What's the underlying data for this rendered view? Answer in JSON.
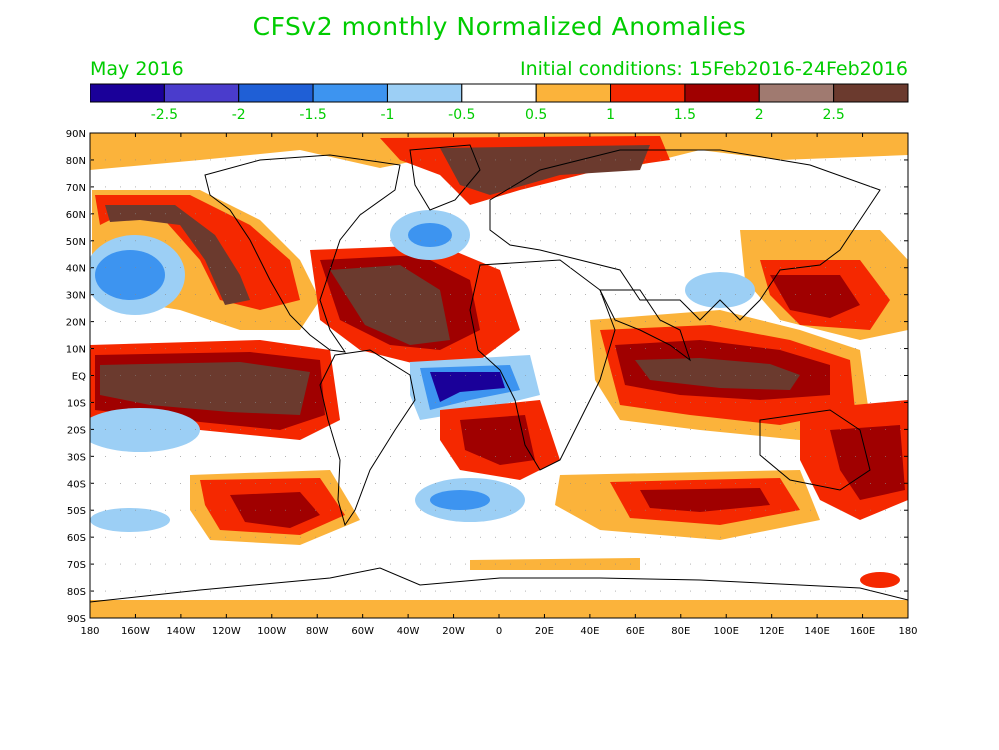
{
  "header": {
    "title": "CFSv2 monthly Normalized Anomalies",
    "month": "May 2016",
    "initial_conditions": "Initial conditions: 15Feb2016-24Feb2016"
  },
  "colorbar": {
    "colors": [
      "#1a0099",
      "#4a3ccc",
      "#1f5fd6",
      "#3d94f0",
      "#9ccff5",
      "#ffffff",
      "#fbb33b",
      "#f52800",
      "#a00000",
      "#a07a70",
      "#6b3a2e"
    ],
    "labels": [
      "-2.5",
      "-2",
      "-1.5",
      "-1",
      "-0.5",
      "0.5",
      "1",
      "1.5",
      "2",
      "2.5"
    ]
  },
  "map": {
    "lat_labels": [
      "90N",
      "80N",
      "70N",
      "60N",
      "50N",
      "40N",
      "30N",
      "20N",
      "10N",
      "EQ",
      "10S",
      "20S",
      "30S",
      "40S",
      "50S",
      "60S",
      "70S",
      "80S",
      "90S"
    ],
    "lon_labels": [
      "180",
      "160W",
      "140W",
      "120W",
      "100W",
      "80W",
      "60W",
      "40W",
      "20W",
      "0",
      "20E",
      "40E",
      "60E",
      "80E",
      "100E",
      "120E",
      "140E",
      "160E",
      "180"
    ]
  }
}
